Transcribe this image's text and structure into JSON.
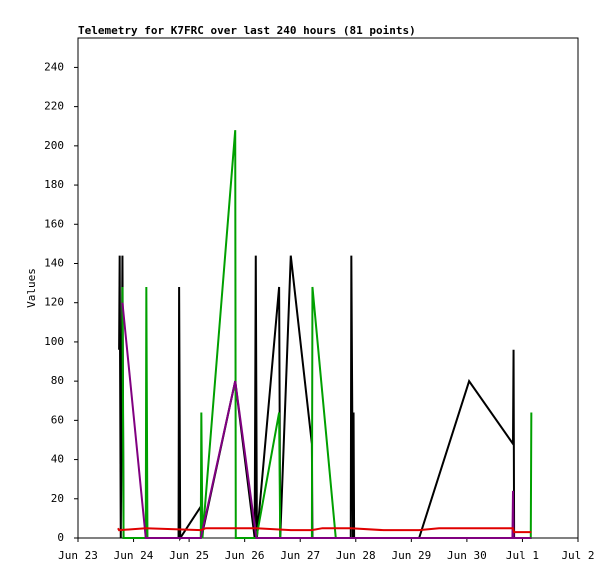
{
  "chart_data": {
    "type": "line",
    "title": "Telemetry for K7FRC over last 240 hours (81 points)",
    "y_label": "Values",
    "xlim": [
      0,
      9
    ],
    "ylim": [
      0,
      255
    ],
    "xticks": [
      {
        "value": 0,
        "label": "Jun 23"
      },
      {
        "value": 1,
        "label": "Jun 24"
      },
      {
        "value": 2,
        "label": "Jun 25"
      },
      {
        "value": 3,
        "label": "Jun 26"
      },
      {
        "value": 4,
        "label": "Jun 27"
      },
      {
        "value": 5,
        "label": "Jun 28"
      },
      {
        "value": 6,
        "label": "Jun 29"
      },
      {
        "value": 7,
        "label": "Jun 30"
      },
      {
        "value": 8,
        "label": "Jul 1"
      },
      {
        "value": 9,
        "label": "Jul 2"
      }
    ],
    "yticks": [
      0,
      20,
      40,
      60,
      80,
      100,
      120,
      140,
      160,
      180,
      200,
      220,
      240
    ],
    "series": [
      {
        "color": "#000000",
        "x": [
          0.74,
          0.75,
          0.77,
          0.8,
          0.82,
          1.22,
          1.81,
          1.82,
          1.84,
          2.21,
          2.22,
          2.83,
          3.18,
          3.2,
          3.22,
          3.62,
          3.64,
          3.83,
          4.21,
          4.22,
          4.91,
          4.92,
          4.95,
          4.96,
          4.97,
          6.14,
          7.04,
          7.83,
          7.84,
          7.85
        ],
        "values": [
          96,
          144,
          0,
          144,
          0,
          0,
          0,
          128,
          0,
          16,
          0,
          80,
          0,
          144,
          0,
          128,
          0,
          144,
          48,
          0,
          0,
          144,
          0,
          64,
          0,
          0,
          80,
          48,
          96,
          0
        ]
      },
      {
        "color": "#00a000",
        "x": [
          0.8,
          0.82,
          1.22,
          1.23,
          1.25,
          2.21,
          2.22,
          2.24,
          2.83,
          2.84,
          3.21,
          3.62,
          3.64,
          4.21,
          4.22,
          4.64,
          4.91,
          8.15,
          8.16
        ],
        "values": [
          128,
          0,
          0,
          128,
          0,
          0,
          64,
          0,
          208,
          0,
          0,
          64,
          0,
          0,
          128,
          0,
          0,
          0,
          64
        ]
      },
      {
        "color": "#800080",
        "x": [
          0.8,
          1.22,
          2.21,
          2.83,
          3.21,
          7.82,
          7.83,
          7.84,
          8.16
        ],
        "values": [
          120,
          0,
          0,
          80,
          0,
          0,
          24,
          0,
          0
        ]
      },
      {
        "color": "#e00000",
        "x": [
          0.72,
          0.74,
          1.22,
          2.21,
          2.3,
          3.21,
          3.83,
          4.21,
          4.4,
          4.91,
          5.5,
          6.14,
          6.5,
          7.83,
          7.85,
          8.16
        ],
        "values": [
          5,
          4,
          5,
          4,
          5,
          5,
          4,
          4,
          5,
          5,
          4,
          4,
          5,
          5,
          3,
          3
        ]
      }
    ]
  }
}
